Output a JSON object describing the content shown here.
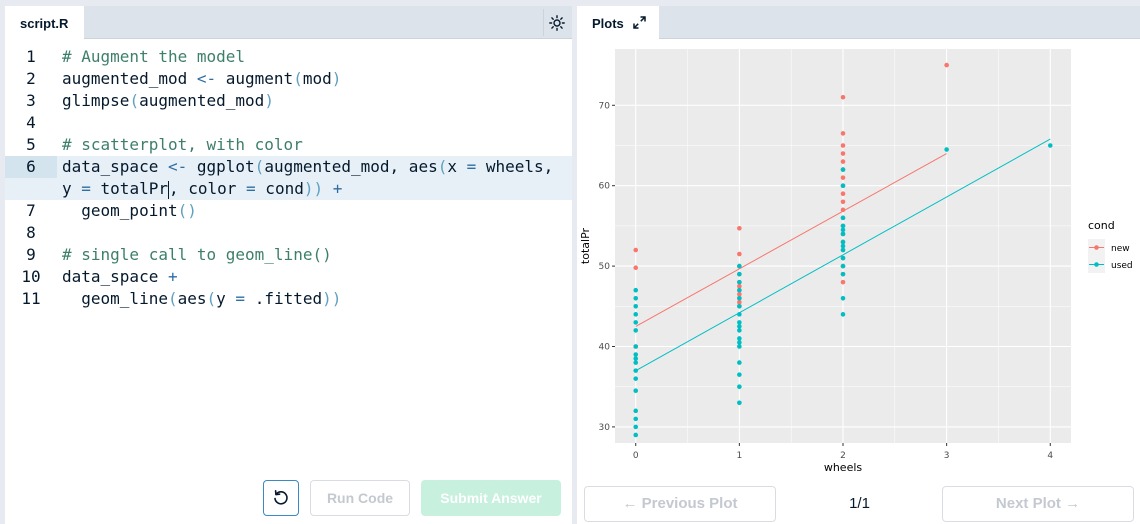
{
  "editor": {
    "tab_label": "script.R",
    "lines": [
      {
        "num": "1"
      },
      {
        "num": "2"
      },
      {
        "num": "3"
      },
      {
        "num": "4"
      },
      {
        "num": "5"
      },
      {
        "num": "6"
      },
      {
        "num": "7"
      },
      {
        "num": "8"
      },
      {
        "num": "9"
      },
      {
        "num": "10"
      },
      {
        "num": "11"
      }
    ],
    "code": {
      "l1": "# Augment the model",
      "l2a": "augmented_mod ",
      "l2b": "<-",
      "l2c": " augment",
      "l2d": "(",
      "l2e": "mod",
      "l2f": ")",
      "l3a": "glimpse",
      "l3b": "(",
      "l3c": "augmented_mod",
      "l3d": ")",
      "l5": "# scatterplot, with color",
      "l6a": "data_space ",
      "l6b": "<-",
      "l6c": " ggplot",
      "l6d": "(",
      "l6e": "augmented_mod, aes",
      "l6f": "(",
      "l6g": "x ",
      "l6h": "=",
      "l6i": " wheels,",
      "l6wa": "y ",
      "l6wb": "=",
      "l6wc": " totalPr",
      "l6wd": ", color ",
      "l6we": "=",
      "l6wf": " cond",
      "l6wg": "))",
      "l6wh": " +",
      "l7a": "  geom_point",
      "l7b": "()",
      "l9": "# single call to geom_line()",
      "l10a": "data_space ",
      "l10b": "+",
      "l11a": "  geom_line",
      "l11b": "(",
      "l11c": "aes",
      "l11d": "(",
      "l11e": "y ",
      "l11f": "=",
      "l11g": " .fitted",
      "l11h": "))"
    },
    "buttons": {
      "run": "Run Code",
      "submit": "Submit Answer"
    }
  },
  "plots": {
    "tab_label": "Plots",
    "prev_label": "← Previous Plot",
    "next_label": "Next Plot →",
    "pager": "1/1"
  },
  "colors": {
    "new": "#f8766d",
    "used": "#00bfc4",
    "panel": "#ebebeb"
  },
  "chart_data": {
    "type": "scatter",
    "xlabel": "wheels",
    "ylabel": "totalPr",
    "xlim": [
      -0.2,
      4.2
    ],
    "ylim": [
      28,
      77
    ],
    "x_ticks": [
      0,
      1,
      2,
      3,
      4
    ],
    "y_ticks": [
      30,
      40,
      50,
      60,
      70
    ],
    "grid": true,
    "legend": {
      "title": "cond",
      "position": "right"
    },
    "series": [
      {
        "name": "new",
        "color": "#f8766d",
        "points": [
          [
            0,
            52.0
          ],
          [
            0,
            49.8
          ],
          [
            0,
            40.0
          ],
          [
            1,
            54.7
          ],
          [
            1,
            51.5
          ],
          [
            1,
            50.0
          ],
          [
            1,
            49.0
          ],
          [
            1,
            48.0
          ],
          [
            1,
            47.5
          ],
          [
            1,
            47.0
          ],
          [
            1,
            46.5
          ],
          [
            1,
            46.0
          ],
          [
            1,
            45.5
          ],
          [
            1,
            45.0
          ],
          [
            2,
            71.0
          ],
          [
            2,
            66.5
          ],
          [
            2,
            65.0
          ],
          [
            2,
            64.0
          ],
          [
            2,
            63.0
          ],
          [
            2,
            62.0
          ],
          [
            2,
            61.0
          ],
          [
            2,
            60.0
          ],
          [
            2,
            59.0
          ],
          [
            2,
            58.0
          ],
          [
            2,
            57.0
          ],
          [
            2,
            56.0
          ],
          [
            2,
            55.0
          ],
          [
            2,
            54.0
          ],
          [
            2,
            53.0
          ],
          [
            2,
            52.0
          ],
          [
            2,
            51.0
          ],
          [
            2,
            50.0
          ],
          [
            2,
            49.0
          ],
          [
            2,
            48.0
          ],
          [
            3,
            75.0
          ]
        ],
        "fitted": [
          [
            0,
            42.5
          ],
          [
            3,
            64.0
          ]
        ]
      },
      {
        "name": "used",
        "color": "#00bfc4",
        "points": [
          [
            0,
            47.0
          ],
          [
            0,
            46.0
          ],
          [
            0,
            45.0
          ],
          [
            0,
            44.0
          ],
          [
            0,
            43.0
          ],
          [
            0,
            42.0
          ],
          [
            0,
            40.0
          ],
          [
            0,
            39.0
          ],
          [
            0,
            38.5
          ],
          [
            0,
            38.0
          ],
          [
            0,
            37.0
          ],
          [
            0,
            36.0
          ],
          [
            0,
            34.5
          ],
          [
            0,
            32.0
          ],
          [
            0,
            31.0
          ],
          [
            0,
            30.0
          ],
          [
            0,
            29.0
          ],
          [
            1,
            50.0
          ],
          [
            1,
            49.0
          ],
          [
            1,
            48.0
          ],
          [
            1,
            47.0
          ],
          [
            1,
            46.0
          ],
          [
            1,
            45.0
          ],
          [
            1,
            44.0
          ],
          [
            1,
            43.0
          ],
          [
            1,
            42.5
          ],
          [
            1,
            42.0
          ],
          [
            1,
            41.0
          ],
          [
            1,
            40.5
          ],
          [
            1,
            40.0
          ],
          [
            1,
            38.0
          ],
          [
            1,
            36.5
          ],
          [
            1,
            35.0
          ],
          [
            1,
            33.0
          ],
          [
            2,
            62.0
          ],
          [
            2,
            60.0
          ],
          [
            2,
            56.0
          ],
          [
            2,
            55.0
          ],
          [
            2,
            54.5
          ],
          [
            2,
            54.0
          ],
          [
            2,
            53.0
          ],
          [
            2,
            52.5
          ],
          [
            2,
            52.0
          ],
          [
            2,
            51.0
          ],
          [
            2,
            50.0
          ],
          [
            2,
            49.0
          ],
          [
            2,
            46.0
          ],
          [
            2,
            44.0
          ],
          [
            3,
            64.5
          ],
          [
            4,
            65.0
          ]
        ],
        "fitted": [
          [
            0,
            37.0
          ],
          [
            4,
            65.8
          ]
        ]
      }
    ]
  }
}
